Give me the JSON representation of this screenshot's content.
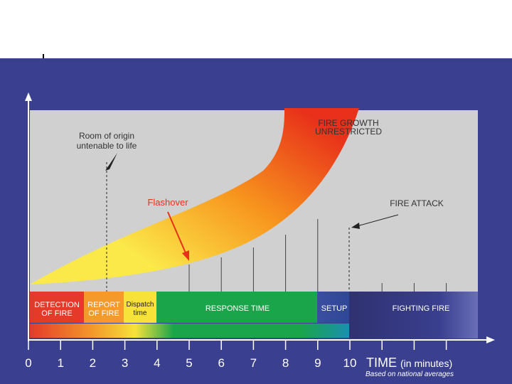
{
  "colors": {
    "background": "#3a3f8f",
    "plot_area": "#d0d0d0",
    "white": "#ffffff",
    "flashover_red": "#e8301a",
    "detection_red": "#e53a2a",
    "report_orange": "#f39a2b",
    "dispatch_yellow": "#f7e23a",
    "response_green": "#1aa54a",
    "setup_blue": "#3b4fa0",
    "fighting_navy": "#2f3170"
  },
  "annotations": {
    "room_of_origin": [
      "Room of origin",
      "untenable to life"
    ],
    "fire_growth": [
      "FIRE GROWTH",
      "UNRESTRICTED"
    ],
    "flashover": "Flashover",
    "fire_attack": "FIRE ATTACK"
  },
  "phases": [
    {
      "name": "detection",
      "lines": [
        "DETECTION",
        "OF FIRE"
      ]
    },
    {
      "name": "report",
      "lines": [
        "REPORT",
        "OF FIRE"
      ]
    },
    {
      "name": "dispatch",
      "lines": [
        "Dispatch",
        "time"
      ]
    },
    {
      "name": "response",
      "lines": [
        "RESPONSE TIME"
      ]
    },
    {
      "name": "setup",
      "lines": [
        "SETUP"
      ]
    },
    {
      "name": "fighting",
      "lines": [
        "FIGHTING FIRE"
      ]
    }
  ],
  "axis": {
    "ticks": [
      "0",
      "1",
      "2",
      "3",
      "4",
      "5",
      "6",
      "7",
      "8",
      "9",
      "10"
    ],
    "title": "TIME",
    "unit": "(in minutes)",
    "note": "Based on national averages"
  }
}
